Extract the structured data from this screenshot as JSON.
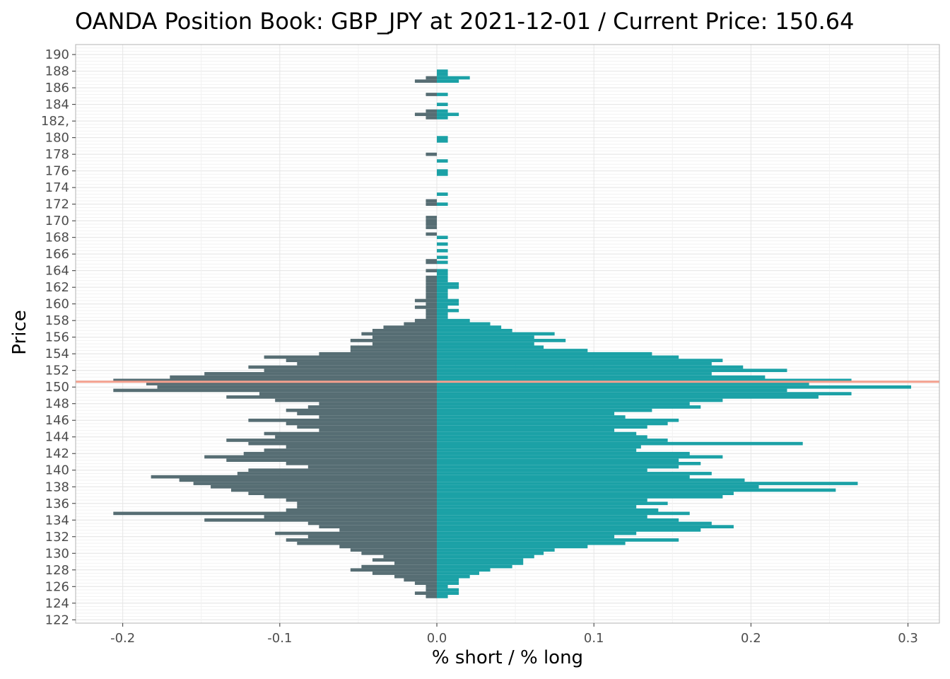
{
  "chart_data": {
    "type": "bar",
    "orientation": "horizontal-diverging",
    "title": "OANDA Position Book: GBP_JPY at 2021-12-01 / Current Price: 150.64",
    "xlabel": "% short / % long",
    "ylabel": "Price",
    "xlim": [
      -0.23,
      0.32
    ],
    "ylim": [
      121.6,
      191.2
    ],
    "x_ticks": [
      -0.2,
      -0.1,
      0.0,
      0.1,
      0.2,
      0.3
    ],
    "x_tick_labels": [
      "-0.2",
      "-0.1",
      "0.0",
      "0.1",
      "0.2",
      "0.3"
    ],
    "y_ticks": [
      122,
      124,
      126,
      128,
      130,
      132,
      134,
      136,
      138,
      140,
      142,
      144,
      146,
      148,
      150,
      152,
      154,
      156,
      158,
      160,
      162,
      164,
      166,
      168,
      170,
      172,
      174,
      176,
      178,
      180,
      182,
      184,
      186,
      188,
      190
    ],
    "y_tick_labels": [
      "122",
      "124",
      "126",
      "128",
      "130",
      "132",
      "134",
      "136",
      "138",
      "140",
      "142",
      "144",
      "146",
      "148",
      "150",
      "152",
      "154",
      "156",
      "158",
      "160",
      "162",
      "164",
      "166",
      "168",
      "170",
      "172",
      "174",
      "176",
      "178",
      "180",
      "182,",
      "184",
      "186",
      "188",
      "190"
    ],
    "current_price": 150.64,
    "grid": true,
    "legend": "none",
    "colors": {
      "short": "#566d73",
      "long": "#1ba1a6",
      "current_price_line": "#f4a08e",
      "panel_border": "#b3b3b3",
      "grid_major": "#e6e6e6",
      "grid_minor": "#f2f2f2"
    },
    "series": [
      {
        "name": "short",
        "points": [
          [
            187.2,
            -0.007
          ],
          [
            186.8,
            -0.014
          ],
          [
            185.2,
            -0.007
          ],
          [
            183.2,
            -0.007
          ],
          [
            182.8,
            -0.014
          ],
          [
            182.4,
            -0.007
          ],
          [
            178.0,
            -0.007
          ],
          [
            172.4,
            -0.007
          ],
          [
            172.0,
            -0.007
          ],
          [
            170.4,
            -0.007
          ],
          [
            170.0,
            -0.007
          ],
          [
            169.6,
            -0.007
          ],
          [
            169.2,
            -0.007
          ],
          [
            168.4,
            -0.007
          ],
          [
            165.2,
            -0.007
          ],
          [
            165.0,
            -0.007
          ],
          [
            164.0,
            -0.007
          ],
          [
            163.2,
            -0.007
          ],
          [
            162.8,
            -0.007
          ],
          [
            162.4,
            -0.007
          ],
          [
            162.0,
            -0.007
          ],
          [
            161.6,
            -0.007
          ],
          [
            161.2,
            -0.007
          ],
          [
            160.8,
            -0.007
          ],
          [
            160.4,
            -0.014
          ],
          [
            160.0,
            -0.007
          ],
          [
            159.6,
            -0.014
          ],
          [
            159.2,
            -0.007
          ],
          [
            158.8,
            -0.007
          ],
          [
            158.4,
            -0.007
          ],
          [
            158.0,
            -0.014
          ],
          [
            157.6,
            -0.021
          ],
          [
            157.2,
            -0.034
          ],
          [
            156.8,
            -0.041
          ],
          [
            156.4,
            -0.048
          ],
          [
            156.0,
            -0.041
          ],
          [
            155.6,
            -0.055
          ],
          [
            155.2,
            -0.041
          ],
          [
            154.8,
            -0.055
          ],
          [
            154.4,
            -0.055
          ],
          [
            154.0,
            -0.075
          ],
          [
            153.6,
            -0.11
          ],
          [
            153.2,
            -0.096
          ],
          [
            152.8,
            -0.089
          ],
          [
            152.4,
            -0.12
          ],
          [
            152.0,
            -0.11
          ],
          [
            151.6,
            -0.148
          ],
          [
            151.2,
            -0.17
          ],
          [
            150.8,
            -0.206
          ],
          [
            150.4,
            -0.185
          ],
          [
            150.0,
            -0.178
          ],
          [
            149.6,
            -0.206
          ],
          [
            149.2,
            -0.113
          ],
          [
            148.8,
            -0.134
          ],
          [
            148.4,
            -0.103
          ],
          [
            148.0,
            -0.075
          ],
          [
            147.6,
            -0.082
          ],
          [
            147.2,
            -0.096
          ],
          [
            146.8,
            -0.089
          ],
          [
            146.4,
            -0.075
          ],
          [
            146.0,
            -0.12
          ],
          [
            145.6,
            -0.096
          ],
          [
            145.2,
            -0.089
          ],
          [
            144.8,
            -0.075
          ],
          [
            144.4,
            -0.11
          ],
          [
            144.0,
            -0.103
          ],
          [
            143.6,
            -0.134
          ],
          [
            143.2,
            -0.12
          ],
          [
            142.8,
            -0.096
          ],
          [
            142.4,
            -0.11
          ],
          [
            142.0,
            -0.123
          ],
          [
            141.6,
            -0.148
          ],
          [
            141.2,
            -0.134
          ],
          [
            140.8,
            -0.096
          ],
          [
            140.4,
            -0.082
          ],
          [
            140.0,
            -0.12
          ],
          [
            139.6,
            -0.127
          ],
          [
            139.2,
            -0.182
          ],
          [
            138.8,
            -0.164
          ],
          [
            138.4,
            -0.155
          ],
          [
            138.0,
            -0.144
          ],
          [
            137.6,
            -0.131
          ],
          [
            137.2,
            -0.12
          ],
          [
            136.8,
            -0.11
          ],
          [
            136.4,
            -0.096
          ],
          [
            136.0,
            -0.089
          ],
          [
            135.6,
            -0.089
          ],
          [
            135.2,
            -0.096
          ],
          [
            134.8,
            -0.206
          ],
          [
            134.4,
            -0.11
          ],
          [
            134.0,
            -0.148
          ],
          [
            133.6,
            -0.082
          ],
          [
            133.2,
            -0.075
          ],
          [
            132.8,
            -0.062
          ],
          [
            132.4,
            -0.103
          ],
          [
            132.0,
            -0.082
          ],
          [
            131.6,
            -0.096
          ],
          [
            131.2,
            -0.089
          ],
          [
            130.8,
            -0.062
          ],
          [
            130.4,
            -0.055
          ],
          [
            130.0,
            -0.048
          ],
          [
            129.6,
            -0.034
          ],
          [
            129.2,
            -0.041
          ],
          [
            128.8,
            -0.027
          ],
          [
            128.4,
            -0.048
          ],
          [
            128.0,
            -0.055
          ],
          [
            127.6,
            -0.041
          ],
          [
            127.2,
            -0.027
          ],
          [
            126.8,
            -0.021
          ],
          [
            126.4,
            -0.014
          ],
          [
            126.0,
            -0.007
          ],
          [
            125.6,
            -0.007
          ],
          [
            125.2,
            -0.014
          ],
          [
            124.8,
            -0.007
          ]
        ]
      },
      {
        "name": "long",
        "points": [
          [
            188.0,
            0.007
          ],
          [
            187.6,
            0.007
          ],
          [
            187.2,
            0.021
          ],
          [
            186.8,
            0.014
          ],
          [
            185.2,
            0.007
          ],
          [
            184.0,
            0.007
          ],
          [
            183.2,
            0.007
          ],
          [
            182.8,
            0.014
          ],
          [
            182.4,
            0.007
          ],
          [
            180.0,
            0.007
          ],
          [
            179.6,
            0.007
          ],
          [
            177.2,
            0.007
          ],
          [
            176.0,
            0.007
          ],
          [
            175.6,
            0.007
          ],
          [
            173.2,
            0.007
          ],
          [
            172.0,
            0.007
          ],
          [
            168.0,
            0.007
          ],
          [
            167.2,
            0.007
          ],
          [
            166.4,
            0.007
          ],
          [
            165.6,
            0.007
          ],
          [
            165.0,
            0.007
          ],
          [
            164.0,
            0.007
          ],
          [
            163.6,
            0.007
          ],
          [
            163.2,
            0.007
          ],
          [
            162.8,
            0.007
          ],
          [
            162.4,
            0.014
          ],
          [
            162.0,
            0.014
          ],
          [
            161.6,
            0.007
          ],
          [
            161.2,
            0.007
          ],
          [
            160.8,
            0.007
          ],
          [
            160.4,
            0.014
          ],
          [
            160.0,
            0.014
          ],
          [
            159.6,
            0.007
          ],
          [
            159.2,
            0.014
          ],
          [
            158.8,
            0.007
          ],
          [
            158.4,
            0.007
          ],
          [
            158.0,
            0.021
          ],
          [
            157.6,
            0.034
          ],
          [
            157.2,
            0.041
          ],
          [
            156.8,
            0.048
          ],
          [
            156.4,
            0.075
          ],
          [
            156.0,
            0.062
          ],
          [
            155.6,
            0.082
          ],
          [
            155.2,
            0.062
          ],
          [
            154.8,
            0.068
          ],
          [
            154.4,
            0.096
          ],
          [
            154.0,
            0.137
          ],
          [
            153.6,
            0.154
          ],
          [
            153.2,
            0.182
          ],
          [
            152.8,
            0.175
          ],
          [
            152.4,
            0.195
          ],
          [
            152.0,
            0.223
          ],
          [
            151.6,
            0.175
          ],
          [
            151.2,
            0.209
          ],
          [
            150.8,
            0.264
          ],
          [
            150.4,
            0.237
          ],
          [
            150.0,
            0.302
          ],
          [
            149.6,
            0.223
          ],
          [
            149.2,
            0.264
          ],
          [
            148.8,
            0.243
          ],
          [
            148.4,
            0.182
          ],
          [
            148.0,
            0.161
          ],
          [
            147.6,
            0.168
          ],
          [
            147.2,
            0.137
          ],
          [
            146.8,
            0.113
          ],
          [
            146.4,
            0.12
          ],
          [
            146.0,
            0.154
          ],
          [
            145.6,
            0.147
          ],
          [
            145.2,
            0.134
          ],
          [
            144.8,
            0.113
          ],
          [
            144.4,
            0.127
          ],
          [
            144.0,
            0.134
          ],
          [
            143.6,
            0.147
          ],
          [
            143.2,
            0.233
          ],
          [
            142.8,
            0.13
          ],
          [
            142.4,
            0.127
          ],
          [
            142.0,
            0.161
          ],
          [
            141.6,
            0.182
          ],
          [
            141.2,
            0.154
          ],
          [
            140.8,
            0.168
          ],
          [
            140.4,
            0.154
          ],
          [
            140.0,
            0.134
          ],
          [
            139.6,
            0.175
          ],
          [
            139.2,
            0.161
          ],
          [
            138.8,
            0.196
          ],
          [
            138.4,
            0.268
          ],
          [
            138.0,
            0.205
          ],
          [
            137.6,
            0.254
          ],
          [
            137.2,
            0.189
          ],
          [
            136.8,
            0.182
          ],
          [
            136.4,
            0.134
          ],
          [
            136.0,
            0.147
          ],
          [
            135.6,
            0.127
          ],
          [
            135.2,
            0.141
          ],
          [
            134.8,
            0.161
          ],
          [
            134.4,
            0.134
          ],
          [
            134.0,
            0.154
          ],
          [
            133.6,
            0.175
          ],
          [
            133.2,
            0.189
          ],
          [
            132.8,
            0.168
          ],
          [
            132.4,
            0.127
          ],
          [
            132.0,
            0.113
          ],
          [
            131.6,
            0.154
          ],
          [
            131.2,
            0.12
          ],
          [
            130.8,
            0.096
          ],
          [
            130.4,
            0.075
          ],
          [
            130.0,
            0.068
          ],
          [
            129.6,
            0.062
          ],
          [
            129.2,
            0.055
          ],
          [
            128.8,
            0.055
          ],
          [
            128.4,
            0.048
          ],
          [
            128.0,
            0.034
          ],
          [
            127.6,
            0.027
          ],
          [
            127.2,
            0.021
          ],
          [
            126.8,
            0.014
          ],
          [
            126.4,
            0.014
          ],
          [
            126.0,
            0.007
          ],
          [
            125.6,
            0.014
          ],
          [
            125.2,
            0.014
          ],
          [
            124.8,
            0.007
          ]
        ]
      }
    ]
  }
}
